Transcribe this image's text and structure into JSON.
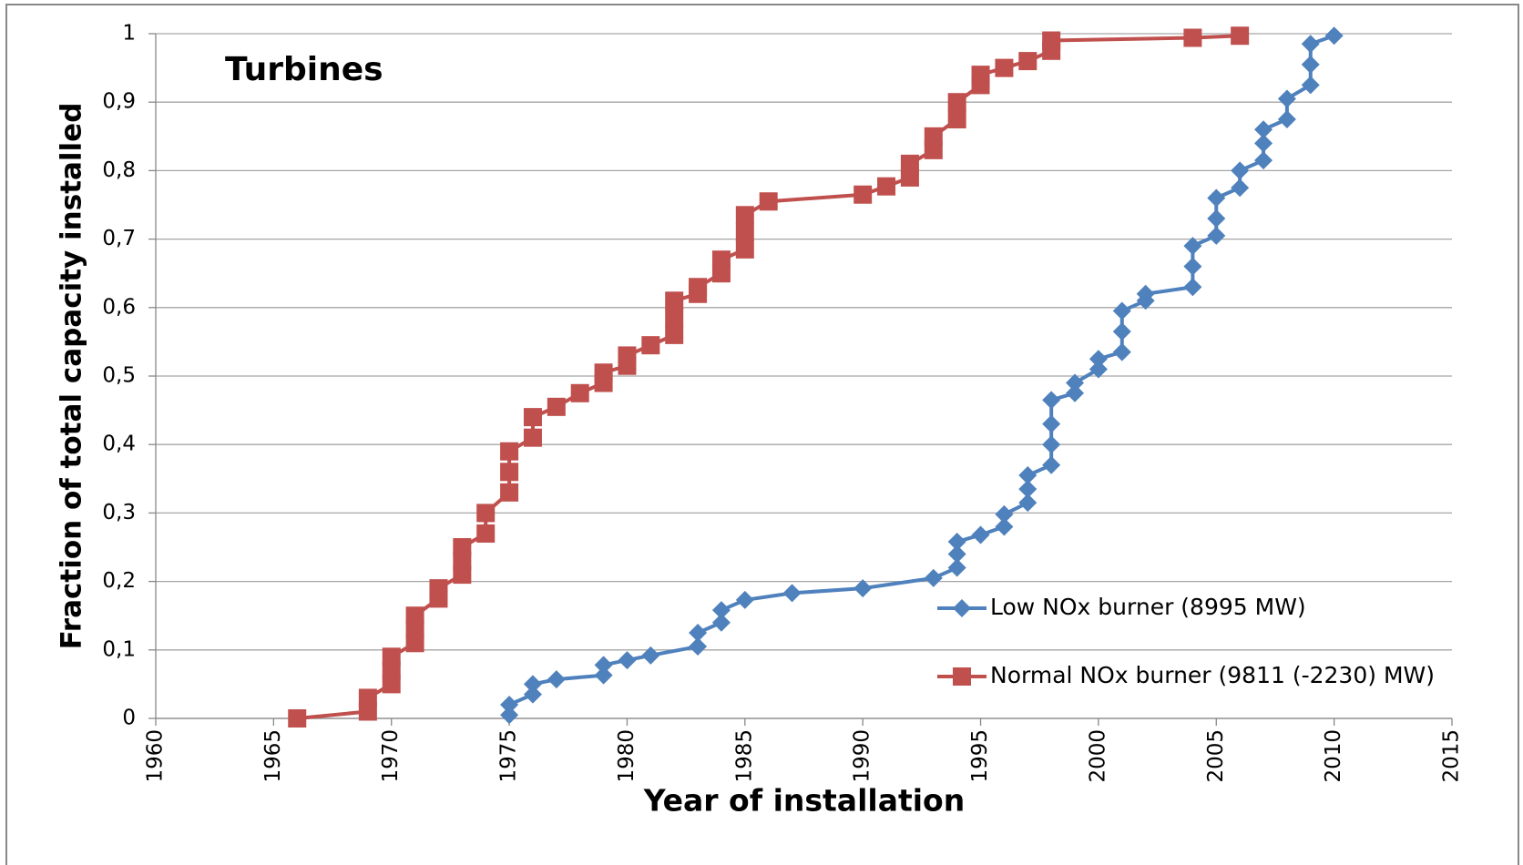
{
  "chart_data": {
    "type": "line",
    "title": "Turbines",
    "x_label": "Year of installation",
    "y_label": "Fraction of total capacity installed",
    "xlim": [
      1960,
      2015
    ],
    "xticks": [
      1960,
      1965,
      1970,
      1975,
      1980,
      1985,
      1990,
      1995,
      2000,
      2005,
      2010,
      2015
    ],
    "ylim": [
      0,
      1
    ],
    "yticks": [
      0,
      {
        "value": 0.1,
        "label": "0,1"
      },
      {
        "value": 0.2,
        "label": "0,2"
      },
      {
        "value": 0.3,
        "label": "0,3"
      },
      {
        "value": 0.4,
        "label": "0,4"
      },
      {
        "value": 0.5,
        "label": "0,5"
      },
      {
        "value": 0.6,
        "label": "0,6"
      },
      {
        "value": 0.7,
        "label": "0,7"
      },
      {
        "value": 0.8,
        "label": "0,8"
      },
      {
        "value": 0.9,
        "label": "0,9"
      },
      1
    ],
    "grid": true,
    "legend": "lower right",
    "series": [
      {
        "name": "Low NOx burner (8995 MW)",
        "color": "#4f81bd",
        "marker": "diamond",
        "x": [
          1975,
          1975,
          1976,
          1976,
          1977,
          1979,
          1979,
          1980,
          1981,
          1983,
          1983,
          1984,
          1984,
          1985,
          1987,
          1990,
          1993,
          1994,
          1994,
          1994,
          1995,
          1996,
          1996,
          1997,
          1997,
          1997,
          1998,
          1998,
          1998,
          1998,
          1999,
          1999,
          2000,
          2000,
          2001,
          2001,
          2001,
          2002,
          2002,
          2004,
          2004,
          2004,
          2005,
          2005,
          2005,
          2006,
          2006,
          2007,
          2007,
          2007,
          2008,
          2008,
          2009,
          2009,
          2009,
          2010
        ],
        "values": [
          0.005,
          0.02,
          0.035,
          0.05,
          0.057,
          0.063,
          0.078,
          0.085,
          0.092,
          0.105,
          0.125,
          0.14,
          0.158,
          0.173,
          0.183,
          0.19,
          0.205,
          0.22,
          0.24,
          0.258,
          0.268,
          0.28,
          0.298,
          0.315,
          0.335,
          0.355,
          0.37,
          0.4,
          0.43,
          0.465,
          0.475,
          0.49,
          0.51,
          0.525,
          0.535,
          0.565,
          0.595,
          0.61,
          0.62,
          0.63,
          0.66,
          0.69,
          0.705,
          0.73,
          0.76,
          0.775,
          0.8,
          0.815,
          0.84,
          0.86,
          0.875,
          0.905,
          0.925,
          0.955,
          0.985,
          0.997
        ]
      },
      {
        "name": "Normal NOx burner (9811 (-2230) MW)",
        "color": "#c0504d",
        "marker": "square",
        "x": [
          1966,
          1969,
          1969,
          1970,
          1970,
          1970,
          1971,
          1971,
          1971,
          1972,
          1972,
          1973,
          1973,
          1973,
          1974,
          1974,
          1975,
          1975,
          1975,
          1976,
          1976,
          1977,
          1978,
          1979,
          1979,
          1980,
          1980,
          1981,
          1982,
          1982,
          1982,
          1983,
          1983,
          1984,
          1984,
          1985,
          1985,
          1985,
          1986,
          1990,
          1991,
          1992,
          1992,
          1993,
          1993,
          1994,
          1994,
          1995,
          1995,
          1996,
          1997,
          1998,
          1998,
          2004,
          2006
        ],
        "values": [
          0,
          0.01,
          0.03,
          0.05,
          0.07,
          0.09,
          0.11,
          0.13,
          0.15,
          0.175,
          0.19,
          0.21,
          0.23,
          0.25,
          0.27,
          0.3,
          0.33,
          0.36,
          0.39,
          0.41,
          0.44,
          0.455,
          0.475,
          0.49,
          0.505,
          0.515,
          0.53,
          0.545,
          0.56,
          0.585,
          0.61,
          0.62,
          0.63,
          0.65,
          0.67,
          0.685,
          0.71,
          0.735,
          0.755,
          0.765,
          0.777,
          0.79,
          0.81,
          0.83,
          0.85,
          0.875,
          0.9,
          0.925,
          0.94,
          0.95,
          0.96,
          0.975,
          0.99,
          0.994,
          0.997
        ]
      }
    ]
  }
}
